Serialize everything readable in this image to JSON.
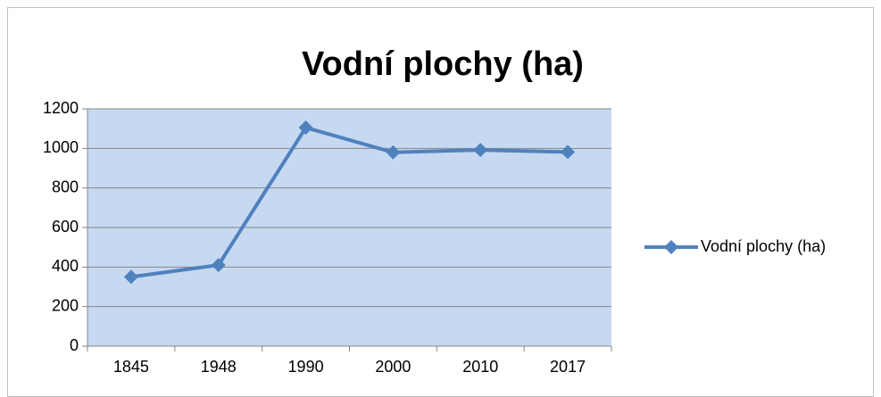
{
  "chart_data": {
    "type": "line",
    "title": "Vodní plochy (ha)",
    "categories": [
      "1845",
      "1948",
      "1990",
      "2000",
      "2010",
      "2017"
    ],
    "series": [
      {
        "name": "Vodní plochy (ha)",
        "color": "#4f81bd",
        "values": [
          350,
          410,
          1105,
          980,
          992,
          982
        ]
      }
    ],
    "ylim": [
      0,
      1200
    ],
    "yticks": [
      0,
      200,
      400,
      600,
      800,
      1000,
      1200
    ],
    "grid": true,
    "legend": "right"
  }
}
